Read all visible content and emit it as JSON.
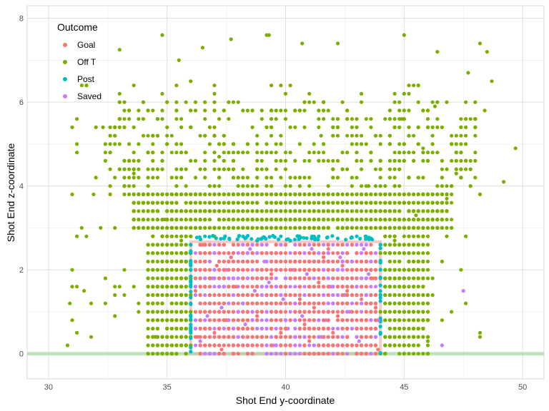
{
  "chart_data": {
    "type": "scatter",
    "title": "",
    "xlabel": "Shot End y-coordinate",
    "ylabel": "Shot End z-coordinate",
    "xlim": [
      29.1,
      50.9
    ],
    "ylim": [
      -0.6,
      8.3
    ],
    "x_ticks": [
      30,
      35,
      40,
      45,
      50
    ],
    "y_ticks": [
      0,
      2,
      4,
      6,
      8
    ],
    "grid": true,
    "legend": {
      "title": "Outcome",
      "position": "top-left"
    },
    "goal_frame": {
      "x": [
        36,
        44
      ],
      "y": [
        0,
        2.67
      ]
    },
    "series": [
      {
        "name": "Goal",
        "color": "#F8766D",
        "points": [
          [
            36.3,
            0.4
          ],
          [
            36.8,
            1.2
          ],
          [
            37.1,
            2.1
          ],
          [
            37.5,
            0.8
          ],
          [
            37.9,
            1.6
          ],
          [
            38.2,
            0.2
          ],
          [
            38.6,
            2.4
          ],
          [
            39.0,
            1.0
          ],
          [
            39.4,
            1.9
          ],
          [
            39.8,
            0.5
          ],
          [
            40.2,
            2.2
          ],
          [
            40.6,
            1.3
          ],
          [
            41.0,
            0.3
          ],
          [
            41.4,
            1.7
          ],
          [
            41.8,
            2.5
          ],
          [
            42.2,
            0.9
          ],
          [
            42.6,
            1.5
          ],
          [
            43.0,
            2.0
          ],
          [
            43.4,
            0.6
          ],
          [
            43.8,
            1.1
          ],
          [
            36.5,
            2.6
          ],
          [
            37.3,
            0.1
          ],
          [
            38.4,
            1.4
          ],
          [
            39.6,
            2.6
          ],
          [
            40.8,
            0.7
          ],
          [
            41.6,
            2.3
          ],
          [
            42.8,
            0.2
          ],
          [
            43.6,
            2.4
          ],
          [
            43.9,
            0.1
          ],
          [
            36.2,
            1.5
          ],
          [
            37.7,
            2.3
          ],
          [
            39.2,
            0.4
          ],
          [
            40.4,
            1.8
          ],
          [
            41.2,
            1.1
          ],
          [
            42.4,
            2.1
          ],
          [
            43.2,
            1.3
          ],
          [
            38.8,
            0.9
          ],
          [
            42.0,
            0.5
          ],
          [
            43.7,
            1.8
          ],
          [
            37.0,
            0.5
          ]
        ],
        "extra_points": 700
      },
      {
        "name": "Off T",
        "color": "#7CAE00",
        "points": [
          [
            30.8,
            0.2
          ],
          [
            30.9,
            1.2
          ],
          [
            31.2,
            0.5
          ],
          [
            31.5,
            1.5
          ],
          [
            31.9,
            3.8
          ],
          [
            32.3,
            5.4
          ],
          [
            33.0,
            7.25
          ],
          [
            33.6,
            4.3
          ],
          [
            34.8,
            7.6
          ],
          [
            35.5,
            7.0
          ],
          [
            36.0,
            6.5
          ],
          [
            36.5,
            7.3
          ],
          [
            37.7,
            7.5
          ],
          [
            39.2,
            7.6
          ],
          [
            39.3,
            7.6
          ],
          [
            40.7,
            7.4
          ],
          [
            42.2,
            7.4
          ],
          [
            45.0,
            7.6
          ],
          [
            46.4,
            7.2
          ],
          [
            47.7,
            6.7
          ],
          [
            48.2,
            7.4
          ],
          [
            48.5,
            7.2
          ],
          [
            48.7,
            6.5
          ],
          [
            49.7,
            4.9
          ],
          [
            49.2,
            4.1
          ],
          [
            48.2,
            0.5
          ],
          [
            47.6,
            2.8
          ],
          [
            47.0,
            1.0
          ],
          [
            46.0,
            0.3
          ],
          [
            34.5,
            0.4
          ],
          [
            33.2,
            2.0
          ],
          [
            32.8,
            0.9
          ],
          [
            34.9,
            3.2
          ],
          [
            35.6,
            2.7
          ],
          [
            44.6,
            2.7
          ],
          [
            45.5,
            3.3
          ],
          [
            46.3,
            5.9
          ],
          [
            44.9,
            5.6
          ],
          [
            41.5,
            5.2
          ],
          [
            39.0,
            4.4
          ],
          [
            37.2,
            4.7
          ],
          [
            36.0,
            3.6
          ],
          [
            35.0,
            1.6
          ],
          [
            34.2,
            2.2
          ],
          [
            33.8,
            1.0
          ],
          [
            47.2,
            4.3
          ],
          [
            46.8,
            3.7
          ],
          [
            45.8,
            4.9
          ],
          [
            43.5,
            4.0
          ],
          [
            38.2,
            5.8
          ]
        ],
        "extra_points": 3000
      },
      {
        "name": "Post",
        "color": "#00BFC4",
        "points": [
          [
            36.0,
            0.5
          ],
          [
            36.0,
            1.2
          ],
          [
            36.0,
            2.0
          ],
          [
            36.0,
            2.6
          ],
          [
            44.0,
            0.5
          ],
          [
            44.0,
            1.4
          ],
          [
            44.0,
            2.2
          ],
          [
            44.0,
            2.6
          ],
          [
            36.6,
            2.8
          ],
          [
            37.4,
            2.75
          ],
          [
            38.2,
            2.8
          ],
          [
            39.0,
            2.75
          ],
          [
            39.8,
            2.8
          ],
          [
            40.6,
            2.75
          ],
          [
            41.4,
            2.8
          ],
          [
            42.2,
            2.75
          ],
          [
            43.0,
            2.8
          ],
          [
            43.6,
            2.75
          ],
          [
            40.2,
            2.7
          ],
          [
            38.8,
            2.7
          ]
        ],
        "extra_points": 100
      },
      {
        "name": "Saved",
        "color": "#C77CFF",
        "points": [
          [
            36.4,
            0.3
          ],
          [
            36.9,
            1.8
          ],
          [
            37.3,
            1.1
          ],
          [
            37.8,
            2.4
          ],
          [
            38.3,
            0.7
          ],
          [
            38.7,
            1.5
          ],
          [
            39.1,
            2.2
          ],
          [
            39.5,
            0.2
          ],
          [
            39.9,
            1.3
          ],
          [
            40.3,
            2.0
          ],
          [
            40.7,
            0.9
          ],
          [
            41.1,
            2.5
          ],
          [
            41.5,
            0.4
          ],
          [
            41.9,
            1.6
          ],
          [
            42.3,
            2.3
          ],
          [
            42.7,
            1.0
          ],
          [
            43.1,
            0.3
          ],
          [
            43.5,
            1.9
          ],
          [
            43.9,
            0.8
          ],
          [
            47.5,
            1.5
          ],
          [
            46.6,
            0.2
          ],
          [
            36.7,
            0.9
          ],
          [
            37.5,
            2.0
          ],
          [
            38.5,
            2.5
          ],
          [
            39.3,
            1.7
          ],
          [
            40.1,
            0.6
          ],
          [
            40.9,
            1.9
          ],
          [
            41.7,
            0.8
          ],
          [
            42.5,
            1.4
          ],
          [
            43.3,
            2.5
          ]
        ],
        "extra_points": 1500
      }
    ]
  }
}
